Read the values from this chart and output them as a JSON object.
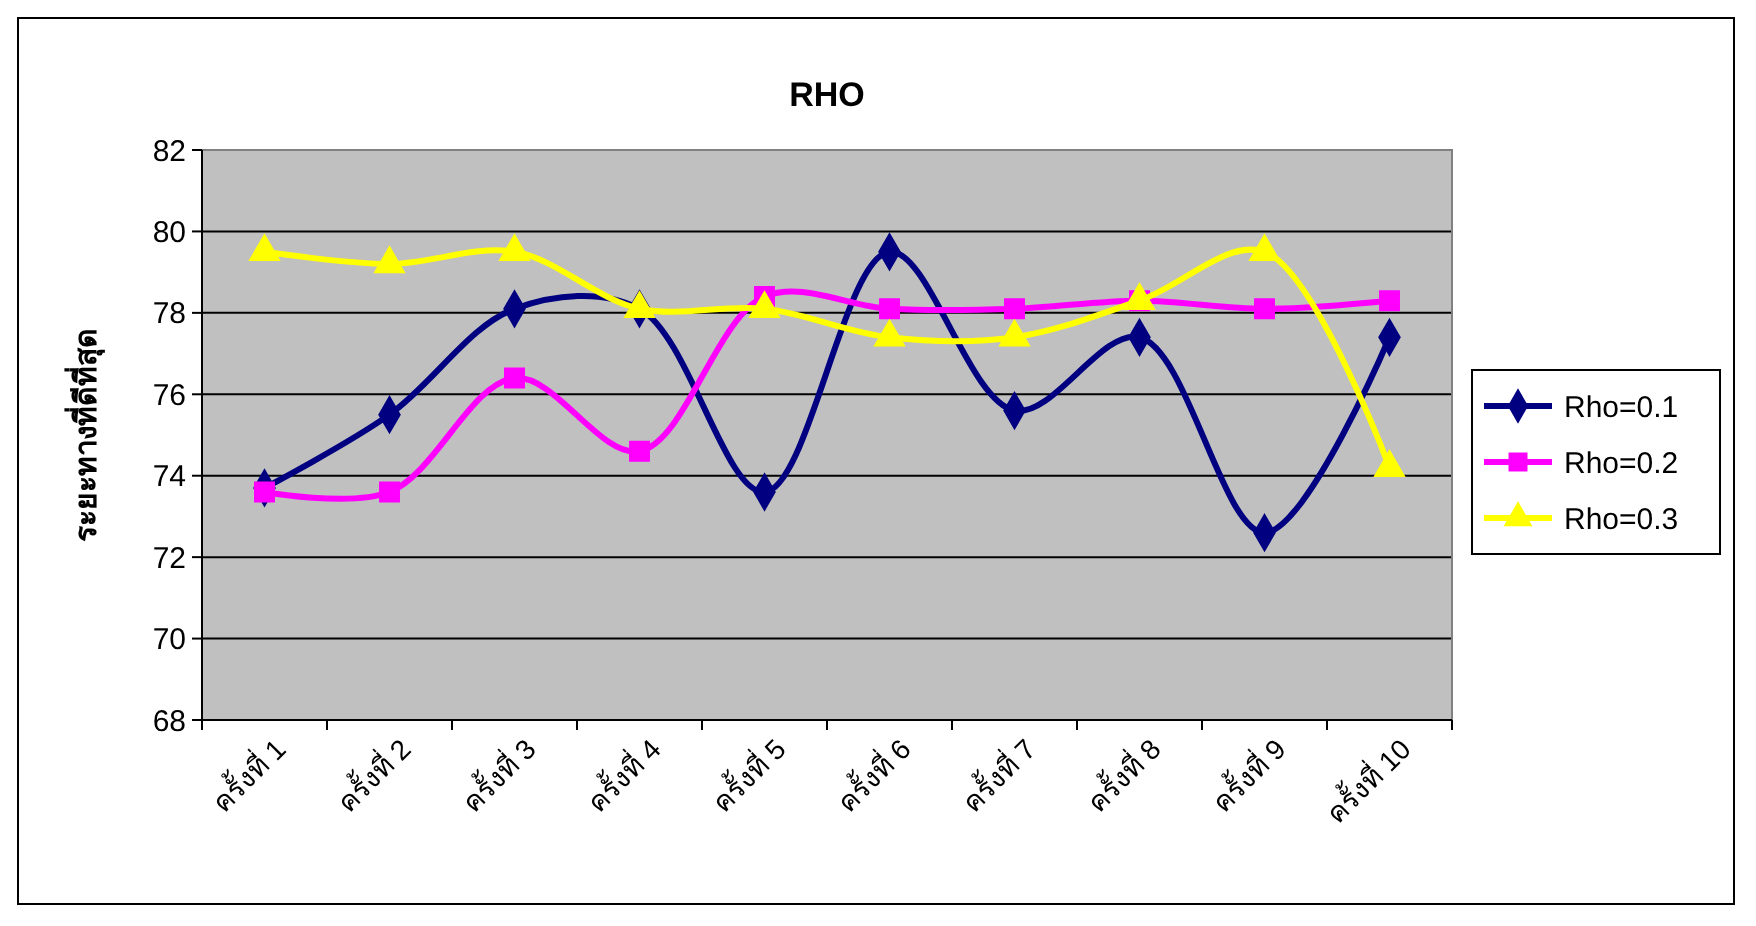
{
  "chart_data": {
    "type": "line",
    "title": "RHO",
    "ylabel": "ระยะทางที่ดีที่สุด",
    "categories": [
      "ครั้งที่ 1",
      "ครั้งที่ 2",
      "ครั้งที่ 3",
      "ครั้งที่ 4",
      "ครั้งที่ 5",
      "ครั้งที่ 6",
      "ครั้งที่ 7",
      "ครั้งที่ 8",
      "ครั้งที่ 9",
      "ครั้งที่ 10"
    ],
    "series": [
      {
        "name": "Rho=0.1",
        "color": "#000080",
        "marker": "diamond",
        "values": [
          73.7,
          75.5,
          78.1,
          78.1,
          73.6,
          79.5,
          75.6,
          77.4,
          72.6,
          77.4
        ]
      },
      {
        "name": "Rho=0.2",
        "color": "#ff00ff",
        "marker": "square",
        "values": [
          73.6,
          73.6,
          76.4,
          74.6,
          78.4,
          78.1,
          78.1,
          78.3,
          78.1,
          78.3
        ]
      },
      {
        "name": "Rho=0.3",
        "color": "#ffff00",
        "marker": "triangle",
        "values": [
          79.5,
          79.2,
          79.5,
          78.1,
          78.1,
          77.4,
          77.4,
          78.3,
          79.5,
          74.2
        ]
      }
    ],
    "ylim": [
      68,
      82
    ],
    "yticks": [
      68,
      70,
      72,
      74,
      76,
      78,
      80,
      82
    ],
    "grid": "y",
    "legend": "right"
  }
}
